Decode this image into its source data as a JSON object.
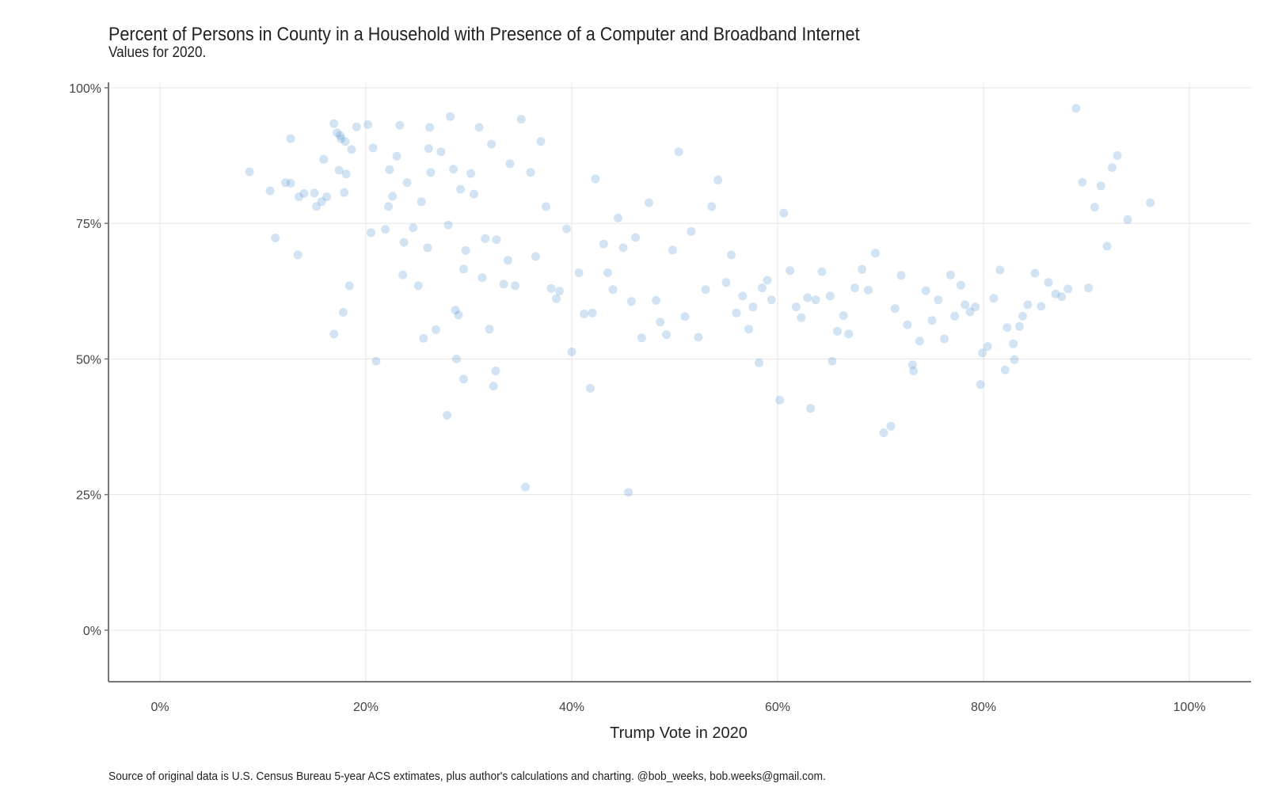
{
  "chart_data": {
    "type": "scatter",
    "title": "Percent of Persons in County in a Household with Presence of a Computer and Broadband Internet",
    "subtitle": "Values for 2020.",
    "caption": "Source of original data is U.S. Census Bureau 5-year ACS extimates, plus author's calculations and charting. @bob_weeks, bob.weeks@gmail.com.",
    "xlabel": "Trump Vote in 2020",
    "ylabel": "",
    "x_unit": "percent",
    "y_unit": "percent",
    "xlim": [
      -5,
      106
    ],
    "ylim": [
      -9.5,
      101
    ],
    "x_ticks": [
      0,
      20,
      40,
      60,
      80,
      100
    ],
    "x_tick_labels": [
      "0%",
      "20%",
      "40%",
      "60%",
      "80%",
      "100%"
    ],
    "y_ticks": [
      0,
      25,
      50,
      75,
      100
    ],
    "y_tick_labels": [
      "0%",
      "25%",
      "50%",
      "75%",
      "100%"
    ],
    "grid": true,
    "legend": "none",
    "point_color": "#4a90d0",
    "point_opacity": 0.25,
    "series": [
      {
        "values": [
          [
            8.7,
            84.5
          ],
          [
            10.7,
            81.0
          ],
          [
            11.2,
            72.3
          ],
          [
            12.2,
            82.5
          ],
          [
            12.7,
            82.4
          ],
          [
            12.7,
            90.6
          ],
          [
            13.4,
            69.2
          ],
          [
            13.5,
            79.9
          ],
          [
            14.0,
            80.5
          ],
          [
            15.0,
            80.6
          ],
          [
            15.2,
            78.1
          ],
          [
            15.7,
            79.0
          ],
          [
            15.9,
            86.8
          ],
          [
            16.2,
            79.9
          ],
          [
            16.9,
            54.6
          ],
          [
            16.9,
            93.4
          ],
          [
            17.2,
            91.7
          ],
          [
            17.4,
            84.8
          ],
          [
            17.5,
            91.2
          ],
          [
            17.6,
            90.6
          ],
          [
            17.8,
            58.6
          ],
          [
            17.9,
            80.7
          ],
          [
            18.0,
            90.1
          ],
          [
            18.1,
            84.1
          ],
          [
            18.4,
            63.5
          ],
          [
            18.6,
            88.6
          ],
          [
            19.1,
            92.8
          ],
          [
            20.2,
            93.2
          ],
          [
            20.5,
            73.3
          ],
          [
            20.7,
            88.9
          ],
          [
            21.0,
            49.6
          ],
          [
            21.9,
            73.9
          ],
          [
            22.2,
            78.1
          ],
          [
            22.3,
            84.9
          ],
          [
            22.6,
            80.0
          ],
          [
            23.0,
            87.4
          ],
          [
            23.3,
            93.1
          ],
          [
            23.6,
            65.5
          ],
          [
            23.7,
            71.5
          ],
          [
            24.0,
            82.5
          ],
          [
            24.6,
            74.2
          ],
          [
            25.1,
            63.5
          ],
          [
            25.4,
            79.0
          ],
          [
            25.6,
            53.8
          ],
          [
            26.0,
            70.5
          ],
          [
            26.1,
            88.8
          ],
          [
            26.2,
            92.7
          ],
          [
            26.3,
            84.4
          ],
          [
            26.8,
            55.4
          ],
          [
            27.3,
            88.2
          ],
          [
            27.9,
            39.6
          ],
          [
            28.0,
            74.7
          ],
          [
            28.2,
            94.7
          ],
          [
            28.5,
            85.0
          ],
          [
            28.7,
            59.0
          ],
          [
            28.8,
            50.0
          ],
          [
            29.0,
            58.1
          ],
          [
            29.2,
            81.3
          ],
          [
            29.5,
            46.3
          ],
          [
            29.5,
            66.6
          ],
          [
            29.7,
            70.0
          ],
          [
            30.2,
            84.2
          ],
          [
            30.5,
            80.4
          ],
          [
            31.0,
            92.7
          ],
          [
            31.3,
            65.0
          ],
          [
            31.6,
            72.2
          ],
          [
            32.0,
            55.5
          ],
          [
            32.2,
            89.6
          ],
          [
            32.4,
            45.0
          ],
          [
            32.6,
            47.8
          ],
          [
            32.7,
            72.0
          ],
          [
            33.4,
            63.8
          ],
          [
            33.8,
            68.2
          ],
          [
            34.0,
            86.0
          ],
          [
            34.5,
            63.5
          ],
          [
            35.1,
            94.2
          ],
          [
            35.5,
            26.4
          ],
          [
            36.0,
            84.4
          ],
          [
            36.5,
            68.9
          ],
          [
            37.0,
            90.1
          ],
          [
            37.5,
            78.1
          ],
          [
            38.0,
            63.0
          ],
          [
            38.5,
            61.1
          ],
          [
            38.8,
            62.5
          ],
          [
            39.5,
            74.0
          ],
          [
            40.0,
            51.3
          ],
          [
            40.7,
            65.9
          ],
          [
            41.2,
            58.3
          ],
          [
            41.8,
            44.6
          ],
          [
            42.0,
            58.5
          ],
          [
            42.3,
            83.2
          ],
          [
            43.1,
            71.2
          ],
          [
            43.5,
            65.9
          ],
          [
            44.0,
            62.8
          ],
          [
            44.5,
            76.0
          ],
          [
            45.0,
            70.5
          ],
          [
            45.5,
            25.4
          ],
          [
            45.8,
            60.6
          ],
          [
            46.2,
            72.4
          ],
          [
            46.8,
            53.9
          ],
          [
            47.5,
            78.8
          ],
          [
            48.2,
            60.8
          ],
          [
            48.6,
            56.8
          ],
          [
            49.2,
            54.5
          ],
          [
            49.8,
            70.1
          ],
          [
            50.4,
            88.2
          ],
          [
            51.0,
            57.8
          ],
          [
            51.6,
            73.5
          ],
          [
            52.3,
            54.0
          ],
          [
            53.0,
            62.8
          ],
          [
            53.6,
            78.1
          ],
          [
            54.2,
            83.0
          ],
          [
            55.0,
            64.1
          ],
          [
            55.5,
            69.2
          ],
          [
            56.0,
            58.5
          ],
          [
            56.6,
            61.6
          ],
          [
            57.2,
            55.5
          ],
          [
            57.6,
            59.6
          ],
          [
            58.2,
            49.3
          ],
          [
            58.5,
            63.1
          ],
          [
            59.0,
            64.5
          ],
          [
            59.4,
            60.9
          ],
          [
            60.2,
            42.4
          ],
          [
            60.6,
            76.9
          ],
          [
            61.2,
            66.3
          ],
          [
            61.8,
            59.6
          ],
          [
            62.3,
            57.6
          ],
          [
            62.9,
            61.3
          ],
          [
            63.2,
            40.9
          ],
          [
            63.7,
            60.9
          ],
          [
            64.3,
            66.1
          ],
          [
            65.1,
            61.6
          ],
          [
            65.3,
            49.6
          ],
          [
            65.8,
            55.1
          ],
          [
            66.4,
            58.0
          ],
          [
            66.9,
            54.6
          ],
          [
            67.5,
            63.1
          ],
          [
            68.2,
            66.5
          ],
          [
            68.8,
            62.7
          ],
          [
            69.5,
            69.5
          ],
          [
            70.3,
            36.4
          ],
          [
            71.0,
            37.6
          ],
          [
            71.4,
            59.3
          ],
          [
            72.0,
            65.4
          ],
          [
            72.6,
            56.3
          ],
          [
            73.1,
            48.9
          ],
          [
            73.2,
            47.8
          ],
          [
            73.8,
            53.3
          ],
          [
            74.4,
            62.6
          ],
          [
            75.0,
            57.1
          ],
          [
            75.6,
            60.9
          ],
          [
            76.2,
            53.7
          ],
          [
            76.8,
            65.5
          ],
          [
            77.2,
            57.9
          ],
          [
            77.8,
            63.6
          ],
          [
            78.2,
            60.0
          ],
          [
            78.7,
            58.7
          ],
          [
            79.2,
            59.6
          ],
          [
            79.7,
            45.3
          ],
          [
            79.9,
            51.1
          ],
          [
            80.4,
            52.3
          ],
          [
            81.0,
            61.2
          ],
          [
            81.6,
            66.4
          ],
          [
            82.1,
            48.0
          ],
          [
            82.3,
            55.8
          ],
          [
            82.9,
            52.8
          ],
          [
            83.0,
            49.9
          ],
          [
            83.5,
            56.0
          ],
          [
            83.8,
            57.9
          ],
          [
            84.3,
            60.0
          ],
          [
            85.0,
            65.8
          ],
          [
            85.6,
            59.7
          ],
          [
            86.3,
            64.1
          ],
          [
            87.0,
            62.0
          ],
          [
            87.6,
            61.5
          ],
          [
            88.2,
            62.9
          ],
          [
            89.0,
            96.2
          ],
          [
            89.6,
            82.6
          ],
          [
            90.2,
            63.1
          ],
          [
            90.8,
            78.0
          ],
          [
            91.4,
            81.9
          ],
          [
            92.0,
            70.8
          ],
          [
            92.5,
            85.3
          ],
          [
            93.0,
            87.5
          ],
          [
            94.0,
            75.7
          ],
          [
            96.2,
            78.8
          ]
        ]
      }
    ]
  }
}
